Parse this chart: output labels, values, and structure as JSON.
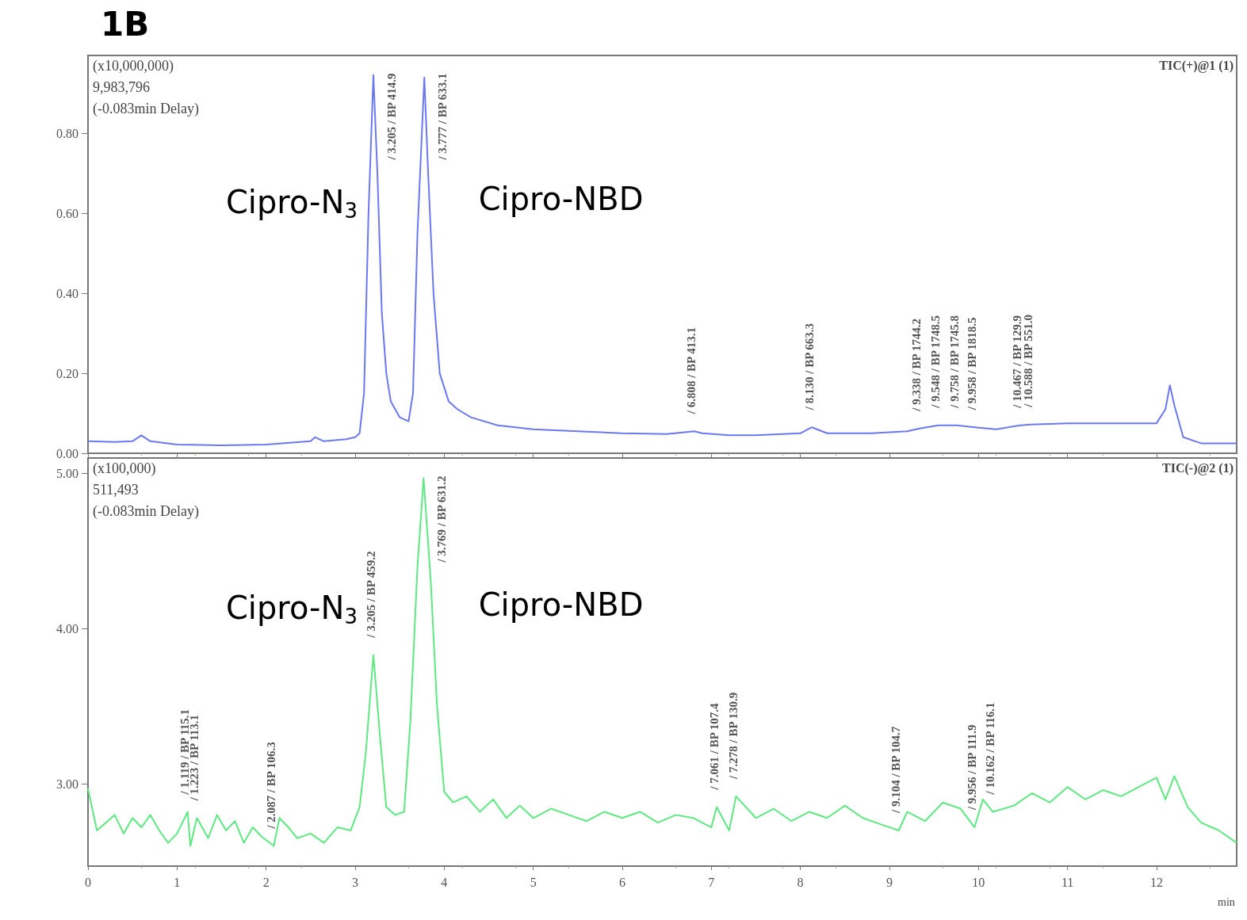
{
  "chart_data": [
    {
      "type": "line",
      "title": "1B",
      "xlim": [
        0,
        12.9
      ],
      "xticks": [
        0,
        1,
        2,
        3,
        4,
        5,
        6,
        7,
        8,
        9,
        10,
        11,
        12
      ],
      "ylim": [
        0,
        0.995
      ],
      "yticks": [
        {
          "value": 0,
          "label": "0.00"
        },
        {
          "value": 0.2,
          "label": "0.20"
        },
        {
          "value": 0.4,
          "label": "0.40"
        },
        {
          "value": 0.6,
          "label": "0.60"
        },
        {
          "value": 0.8,
          "label": "0.80"
        }
      ],
      "tick_labels": "y",
      "grid": false,
      "marker": "none",
      "line_style": "solid",
      "series": [
        {
          "color": "#6b78f0",
          "x": [
            0,
            0.3,
            0.5,
            0.6,
            0.7,
            1,
            1.5,
            2,
            2.5,
            2.55,
            2.65,
            2.9,
            3.0,
            3.05,
            3.1,
            3.15,
            3.205,
            3.25,
            3.3,
            3.35,
            3.4,
            3.5,
            3.6,
            3.65,
            3.7,
            3.777,
            3.82,
            3.88,
            3.95,
            4.05,
            4.15,
            4.3,
            4.6,
            5,
            5.5,
            6,
            6.5,
            6.808,
            6.9,
            7.2,
            7.5,
            8.0,
            8.13,
            8.3,
            8.8,
            9.2,
            9.338,
            9.548,
            9.758,
            9.958,
            10.2,
            10.467,
            10.588,
            11,
            11.5,
            12,
            12.1,
            12.15,
            12.2,
            12.3,
            12.5,
            12.9
          ],
          "values": [
            0.03,
            0.028,
            0.03,
            0.045,
            0.03,
            0.022,
            0.02,
            0.022,
            0.03,
            0.04,
            0.03,
            0.035,
            0.04,
            0.05,
            0.15,
            0.6,
            0.946,
            0.7,
            0.35,
            0.2,
            0.13,
            0.09,
            0.08,
            0.15,
            0.55,
            0.94,
            0.7,
            0.4,
            0.2,
            0.13,
            0.11,
            0.09,
            0.07,
            0.06,
            0.055,
            0.05,
            0.048,
            0.055,
            0.05,
            0.045,
            0.045,
            0.05,
            0.065,
            0.05,
            0.05,
            0.055,
            0.062,
            0.07,
            0.07,
            0.065,
            0.06,
            0.07,
            0.072,
            0.075,
            0.075,
            0.075,
            0.11,
            0.17,
            0.12,
            0.04,
            0.025,
            0.025
          ]
        }
      ],
      "annotations": [
        "(x10,000,000)",
        "9,983,796",
        "(-0.083min Delay)",
        "TIC(+)@1 (1)",
        "Cipro-N$_{3}$",
        "Cipro-NBD",
        {
          "text": "/ 3.205 / BP 414.9",
          "x": 3.205,
          "y": 0.946
        },
        {
          "text": "/ 3.777 / BP 633.1",
          "x": 3.777,
          "y": 0.94
        },
        {
          "text": "/ 6.808 / BP 413.1",
          "x": 6.808,
          "y": 0.055
        },
        {
          "text": "/ 8.130 / BP 663.3",
          "x": 8.13,
          "y": 0.065
        },
        {
          "text": "/ 9.338 / BP 1744.2",
          "x": 9.338,
          "y": 0.062
        },
        {
          "text": "/ 9.548 / BP 1748.5",
          "x": 9.548,
          "y": 0.07
        },
        {
          "text": "/ 9.758 / BP 1745.8",
          "x": 9.758,
          "y": 0.07
        },
        {
          "text": "/ 9.958 / BP 1818.5",
          "x": 9.958,
          "y": 0.065
        },
        {
          "text": "/ 10.467 / BP 129.9",
          "x": 10.467,
          "y": 0.07
        },
        {
          "text": "/ 10.588 / BP 551.0",
          "x": 10.588,
          "y": 0.072
        }
      ]
    },
    {
      "type": "line",
      "xlabel": "min",
      "xlim": [
        0,
        12.9
      ],
      "xticks": [
        0,
        1,
        2,
        3,
        4,
        5,
        6,
        7,
        8,
        9,
        10,
        11,
        12
      ],
      "ylim": [
        2.47,
        5.1
      ],
      "yticks": [
        {
          "value": 3,
          "label": "3.00"
        },
        {
          "value": 4,
          "label": "4.00"
        },
        {
          "value": 5,
          "label": "5.00"
        }
      ],
      "grid": false,
      "marker": "none",
      "line_style": "solid",
      "series": [
        {
          "color": "#5ee882",
          "x": [
            0,
            0.1,
            0.2,
            0.3,
            0.4,
            0.5,
            0.6,
            0.7,
            0.8,
            0.9,
            1.0,
            1.119,
            1.15,
            1.223,
            1.35,
            1.45,
            1.55,
            1.65,
            1.75,
            1.85,
            1.95,
            2.087,
            2.15,
            2.25,
            2.35,
            2.5,
            2.65,
            2.8,
            2.95,
            3.05,
            3.12,
            3.205,
            3.28,
            3.35,
            3.45,
            3.55,
            3.62,
            3.7,
            3.769,
            3.85,
            3.92,
            4.0,
            4.1,
            4.25,
            4.4,
            4.55,
            4.7,
            4.85,
            5.0,
            5.2,
            5.4,
            5.6,
            5.8,
            6.0,
            6.2,
            6.4,
            6.6,
            6.8,
            7.0,
            7.061,
            7.2,
            7.278,
            7.5,
            7.7,
            7.9,
            8.1,
            8.3,
            8.5,
            8.7,
            8.9,
            9.104,
            9.2,
            9.4,
            9.6,
            9.8,
            9.956,
            10.05,
            10.162,
            10.4,
            10.6,
            10.8,
            11.0,
            11.2,
            11.4,
            11.6,
            11.8,
            12.0,
            12.1,
            12.2,
            12.35,
            12.5,
            12.7,
            12.9
          ],
          "values": [
            2.97,
            2.7,
            2.75,
            2.8,
            2.68,
            2.78,
            2.72,
            2.8,
            2.7,
            2.62,
            2.68,
            2.82,
            2.6,
            2.78,
            2.65,
            2.8,
            2.7,
            2.76,
            2.62,
            2.72,
            2.66,
            2.6,
            2.78,
            2.72,
            2.65,
            2.68,
            2.62,
            2.72,
            2.7,
            2.85,
            3.2,
            3.83,
            3.3,
            2.85,
            2.8,
            2.82,
            3.4,
            4.4,
            4.97,
            4.3,
            3.5,
            2.95,
            2.88,
            2.92,
            2.82,
            2.9,
            2.78,
            2.86,
            2.78,
            2.84,
            2.8,
            2.76,
            2.82,
            2.78,
            2.82,
            2.75,
            2.8,
            2.78,
            2.72,
            2.85,
            2.7,
            2.92,
            2.78,
            2.84,
            2.76,
            2.82,
            2.78,
            2.86,
            2.78,
            2.74,
            2.7,
            2.82,
            2.76,
            2.88,
            2.84,
            2.72,
            2.9,
            2.82,
            2.86,
            2.94,
            2.88,
            2.98,
            2.9,
            2.96,
            2.92,
            2.98,
            3.04,
            2.9,
            3.05,
            2.85,
            2.75,
            2.7,
            2.62
          ]
        }
      ],
      "annotations": [
        "(x100,000)",
        "511,493",
        "(-0.083min Delay)",
        "TIC(-)@2 (1)",
        "Cipro-N$_{3}$",
        "Cipro-NBD",
        {
          "text": "/ 1.119 / BP 115.1",
          "x": 1.119,
          "y": 2.82
        },
        {
          "text": "/ 1.223 / BP 113.1",
          "x": 1.223,
          "y": 2.78
        },
        {
          "text": "/ 2.087 / BP 106.3",
          "x": 2.087,
          "y": 2.6
        },
        {
          "text": "/ 3.205 / BP 459.2",
          "x": 3.205,
          "y": 3.83
        },
        {
          "text": "/ 3.769 / BP 631.2",
          "x": 3.769,
          "y": 4.97
        },
        {
          "text": "/ 7.061 / BP 107.4",
          "x": 7.061,
          "y": 2.85
        },
        {
          "text": "/ 7.278 / BP 130.9",
          "x": 7.278,
          "y": 2.92
        },
        {
          "text": "/ 9.104 / BP 104.7",
          "x": 9.104,
          "y": 2.7
        },
        {
          "text": "/ 9.956 / BP 111.9",
          "x": 9.956,
          "y": 2.72
        },
        {
          "text": "/ 10.162 / BP 116.1",
          "x": 10.162,
          "y": 2.82
        }
      ]
    }
  ]
}
